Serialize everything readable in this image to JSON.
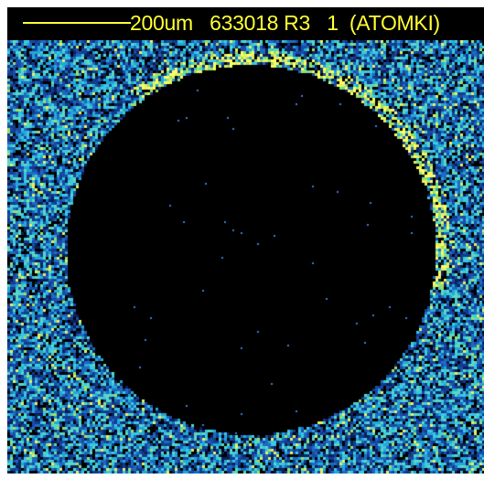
{
  "header": {
    "scale_text": "200um",
    "sample_id": "633018 R3",
    "frame_number": "1",
    "lab": "(ATOMKI)"
  },
  "colors": {
    "text": "#ffff33",
    "background": "#000000",
    "signal_low": "#1a4aa8",
    "signal_mid": "#22a8d8",
    "signal_high": "#ffff60"
  }
}
